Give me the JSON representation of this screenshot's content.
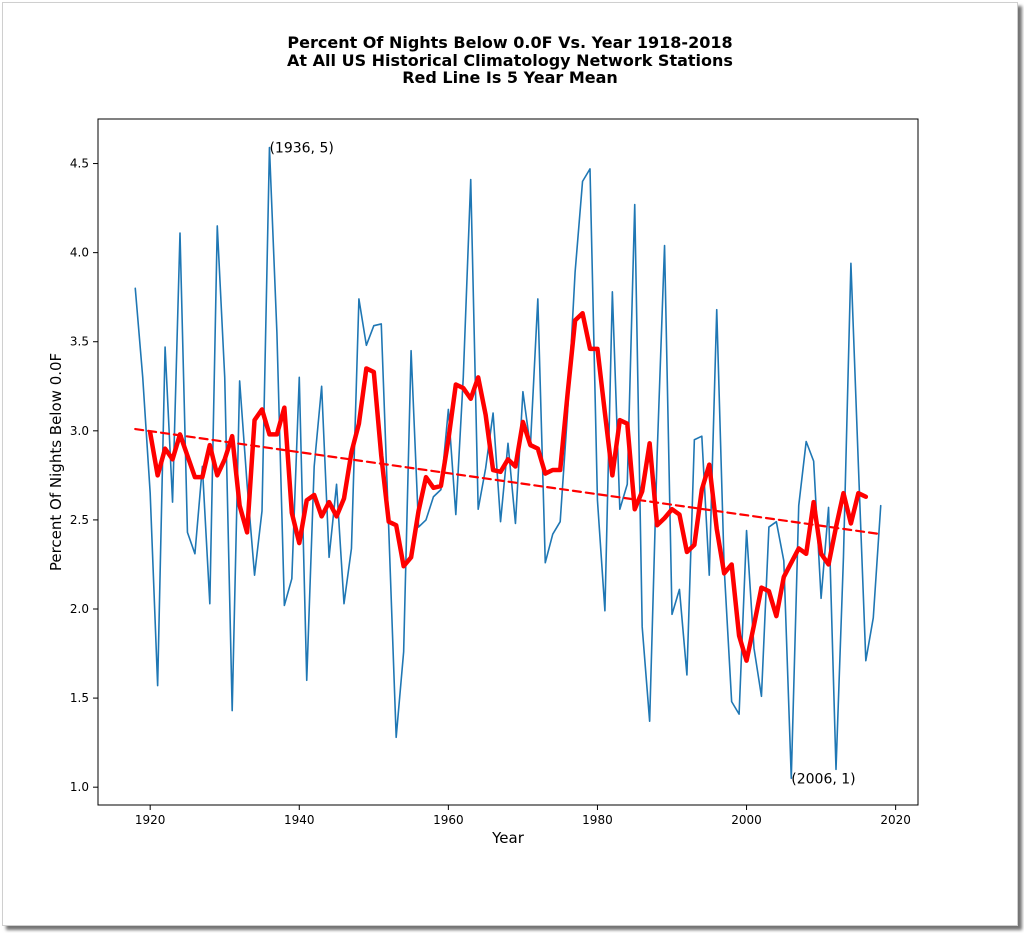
{
  "chart_data": {
    "type": "line",
    "title": [
      "Percent Of Nights Below 0.0F Vs. Year 1918-2018",
      "At All US Historical Climatology Network Stations",
      "Red Line Is 5 Year Mean"
    ],
    "xlabel": "Year",
    "ylabel": "Percent Of Nights Below 0.0F",
    "xlim": [
      1913,
      2023
    ],
    "ylim": [
      0.9,
      4.75
    ],
    "xticks": [
      1920,
      1940,
      1960,
      1980,
      2000,
      2020
    ],
    "xtick_labels": [
      "1920",
      "1940",
      "1960",
      "1980",
      "2000",
      "2020"
    ],
    "yticks": [
      1.0,
      1.5,
      2.0,
      2.5,
      3.0,
      3.5,
      4.0,
      4.5
    ],
    "ytick_labels": [
      "1.0",
      "1.5",
      "2.0",
      "2.5",
      "3.0",
      "3.5",
      "4.0",
      "4.5"
    ],
    "grid": false,
    "series": [
      {
        "role": "annual",
        "color": "#1f77b4",
        "x": [
          1918,
          1919,
          1920,
          1921,
          1922,
          1923,
          1924,
          1925,
          1926,
          1927,
          1928,
          1929,
          1930,
          1931,
          1932,
          1933,
          1934,
          1935,
          1936,
          1937,
          1938,
          1939,
          1940,
          1941,
          1942,
          1943,
          1944,
          1945,
          1946,
          1947,
          1948,
          1949,
          1950,
          1951,
          1952,
          1953,
          1954,
          1955,
          1956,
          1957,
          1958,
          1959,
          1960,
          1961,
          1962,
          1963,
          1964,
          1965,
          1966,
          1967,
          1968,
          1969,
          1970,
          1971,
          1972,
          1973,
          1974,
          1975,
          1976,
          1977,
          1978,
          1979,
          1980,
          1981,
          1982,
          1983,
          1984,
          1985,
          1986,
          1987,
          1988,
          1989,
          1990,
          1991,
          1992,
          1993,
          1994,
          1995,
          1996,
          1997,
          1998,
          1999,
          2000,
          2001,
          2002,
          2003,
          2004,
          2005,
          2006,
          2007,
          2008,
          2009,
          2010,
          2011,
          2012,
          2013,
          2014,
          2015,
          2016,
          2017,
          2018
        ],
        "values": [
          3.8,
          3.3,
          2.65,
          1.57,
          3.47,
          2.6,
          4.11,
          2.43,
          2.31,
          2.8,
          2.03,
          4.15,
          3.3,
          1.43,
          3.28,
          2.7,
          2.19,
          2.55,
          4.59,
          3.55,
          2.02,
          2.17,
          3.3,
          1.6,
          2.8,
          3.25,
          2.29,
          2.7,
          2.03,
          2.34,
          3.74,
          3.48,
          3.59,
          3.6,
          2.45,
          1.28,
          1.76,
          3.45,
          2.46,
          2.5,
          2.63,
          2.67,
          3.12,
          2.53,
          3.3,
          4.41,
          2.56,
          2.79,
          3.1,
          2.49,
          2.93,
          2.48,
          3.22,
          2.91,
          3.74,
          2.26,
          2.42,
          2.49,
          3.11,
          3.89,
          4.4,
          4.47,
          2.61,
          1.99,
          3.78,
          2.56,
          2.7,
          4.27,
          1.9,
          1.37,
          2.86,
          4.04,
          1.97,
          2.11,
          1.63,
          2.95,
          2.97,
          2.19,
          3.68,
          2.23,
          1.48,
          1.41,
          2.44,
          1.78,
          1.51,
          2.46,
          2.49,
          2.27,
          1.05,
          2.58,
          2.94,
          2.83,
          2.06,
          2.57,
          1.1,
          2.29,
          3.94,
          2.81,
          1.71,
          1.95,
          2.58
        ]
      },
      {
        "role": "5-year-mean",
        "color": "#ff0000",
        "x": [
          1920,
          1921,
          1922,
          1923,
          1924,
          1925,
          1926,
          1927,
          1928,
          1929,
          1930,
          1931,
          1932,
          1933,
          1934,
          1935,
          1936,
          1937,
          1938,
          1939,
          1940,
          1941,
          1942,
          1943,
          1944,
          1945,
          1946,
          1947,
          1948,
          1949,
          1950,
          1951,
          1952,
          1953,
          1954,
          1955,
          1956,
          1957,
          1958,
          1959,
          1960,
          1961,
          1962,
          1963,
          1964,
          1965,
          1966,
          1967,
          1968,
          1969,
          1970,
          1971,
          1972,
          1973,
          1974,
          1975,
          1976,
          1977,
          1978,
          1979,
          1980,
          1981,
          1982,
          1983,
          1984,
          1985,
          1986,
          1987,
          1988,
          1989,
          1990,
          1991,
          1992,
          1993,
          1994,
          1995,
          1996,
          1997,
          1998,
          1999,
          2000,
          2001,
          2002,
          2003,
          2004,
          2005,
          2006,
          2007,
          2008,
          2009,
          2010,
          2011,
          2012,
          2013,
          2014,
          2015,
          2016
        ],
        "values": [
          2.99,
          2.75,
          2.9,
          2.84,
          2.98,
          2.86,
          2.74,
          2.74,
          2.92,
          2.75,
          2.84,
          2.97,
          2.58,
          2.43,
          3.06,
          3.12,
          2.98,
          2.98,
          3.13,
          2.54,
          2.37,
          2.61,
          2.64,
          2.52,
          2.6,
          2.52,
          2.62,
          2.88,
          3.04,
          3.35,
          3.33,
          2.86,
          2.49,
          2.47,
          2.24,
          2.29,
          2.55,
          2.74,
          2.68,
          2.69,
          2.95,
          3.26,
          3.24,
          3.18,
          3.3,
          3.09,
          2.78,
          2.77,
          2.84,
          2.8,
          3.05,
          2.92,
          2.9,
          2.76,
          2.78,
          2.78,
          3.21,
          3.62,
          3.66,
          3.46,
          3.46,
          3.1,
          2.75,
          3.06,
          3.04,
          2.56,
          2.66,
          2.93,
          2.47,
          2.51,
          2.56,
          2.53,
          2.32,
          2.36,
          2.67,
          2.81,
          2.45,
          2.2,
          2.25,
          1.85,
          1.71,
          1.91,
          2.12,
          2.1,
          1.96,
          2.18,
          2.26,
          2.34,
          2.31,
          2.6,
          2.31,
          2.25,
          2.46,
          2.65,
          2.48,
          2.65,
          2.63
        ]
      },
      {
        "role": "trend",
        "color": "#ff0000",
        "x": [
          1918,
          2018
        ],
        "values": [
          3.01,
          2.42
        ]
      }
    ],
    "annotations": [
      {
        "text": "(1936, 5)",
        "x": 1936,
        "y": 4.59
      },
      {
        "text": "(2006, 1)",
        "x": 2006,
        "y": 1.05
      }
    ]
  }
}
